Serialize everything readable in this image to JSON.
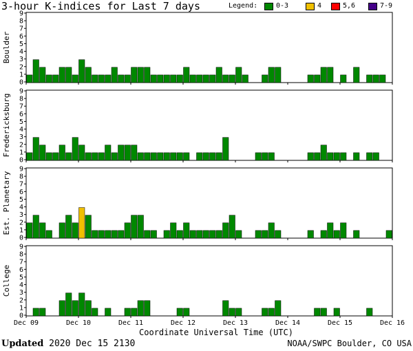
{
  "header": {
    "title": "3-hour K-indices for Last 7 days",
    "legend_label": "Legend:",
    "legend": [
      {
        "label": "0-3",
        "color": "#008800"
      },
      {
        "label": "4",
        "color": "#f0c000"
      },
      {
        "label": "5,6",
        "color": "#ff0000"
      },
      {
        "label": "7-9",
        "color": "#440088"
      }
    ]
  },
  "footer": {
    "updated_label": "Updated",
    "updated_value": "2020 Dec 15 2130",
    "credit": "NOAA/SWPC Boulder, CO USA"
  },
  "chart_data": {
    "type": "bar",
    "x_axis_title": "Coordinate Universal Time (UTC)",
    "x_ticks": [
      "Dec 09",
      "Dec 10",
      "Dec 11",
      "Dec 12",
      "Dec 13",
      "Dec 14",
      "Dec 15",
      "Dec 16"
    ],
    "y_ticks": [
      0,
      1,
      2,
      3,
      4,
      5,
      6,
      7,
      8,
      9
    ],
    "ylim": [
      0,
      9
    ],
    "interval_hours": 3,
    "color_thresholds": [
      {
        "max": 3,
        "color": "#008800"
      },
      {
        "max": 4,
        "color": "#f0c000"
      },
      {
        "max": 6,
        "color": "#ff0000"
      },
      {
        "max": 9,
        "color": "#440088"
      }
    ],
    "panels": [
      {
        "name": "Boulder",
        "values": [
          1,
          3,
          2,
          1,
          1,
          2,
          2,
          1,
          3,
          2,
          1,
          1,
          1,
          2,
          1,
          1,
          2,
          2,
          2,
          1,
          1,
          1,
          1,
          1,
          2,
          1,
          1,
          1,
          1,
          2,
          1,
          1,
          2,
          1,
          0,
          0,
          1,
          2,
          2,
          0,
          0,
          0,
          0,
          1,
          1,
          2,
          2,
          0,
          1,
          0,
          2,
          0,
          1,
          1,
          1,
          0
        ]
      },
      {
        "name": "Fredericksburg",
        "values": [
          1,
          3,
          2,
          1,
          1,
          2,
          1,
          3,
          2,
          1,
          1,
          1,
          2,
          1,
          2,
          2,
          2,
          1,
          1,
          1,
          1,
          1,
          1,
          1,
          1,
          0,
          1,
          1,
          1,
          1,
          3,
          0,
          0,
          0,
          0,
          1,
          1,
          1,
          0,
          0,
          0,
          0,
          0,
          1,
          1,
          2,
          1,
          1,
          1,
          0,
          1,
          0,
          1,
          1,
          0,
          0
        ]
      },
      {
        "name": "Est. Planetary",
        "values": [
          2,
          3,
          2,
          1,
          0,
          2,
          3,
          2,
          4,
          3,
          1,
          1,
          1,
          1,
          1,
          2,
          3,
          3,
          1,
          1,
          0,
          1,
          2,
          1,
          2,
          1,
          1,
          1,
          1,
          1,
          2,
          3,
          1,
          0,
          0,
          1,
          1,
          2,
          1,
          0,
          0,
          0,
          0,
          1,
          0,
          1,
          2,
          1,
          2,
          0,
          1,
          0,
          0,
          0,
          0,
          1
        ]
      },
      {
        "name": "College",
        "values": [
          0,
          1,
          1,
          0,
          0,
          2,
          3,
          2,
          3,
          2,
          1,
          0,
          1,
          0,
          0,
          1,
          1,
          2,
          2,
          0,
          0,
          0,
          0,
          1,
          1,
          0,
          0,
          0,
          0,
          0,
          2,
          1,
          1,
          0,
          0,
          0,
          1,
          1,
          2,
          0,
          0,
          0,
          0,
          0,
          1,
          1,
          0,
          1,
          0,
          0,
          0,
          0,
          1,
          0,
          0,
          0
        ]
      }
    ]
  }
}
